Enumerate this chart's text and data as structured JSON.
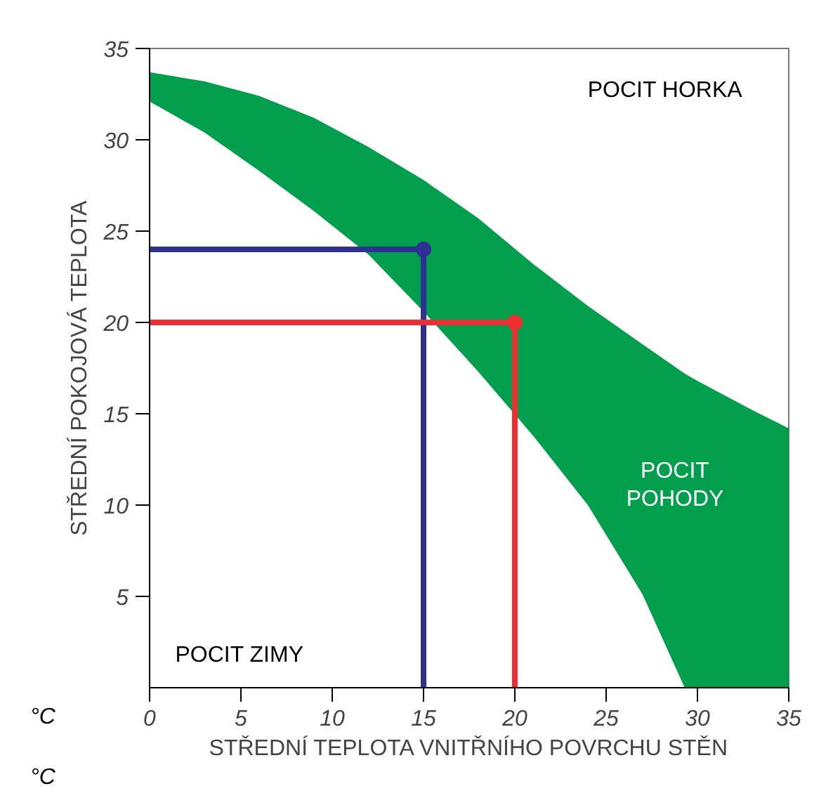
{
  "chart_data": {
    "type": "line",
    "xlabel": "STŘEDNÍ TEPLOTA VNITŘNÍHO POVRCHU STĚN",
    "ylabel": "STŘEDNÍ POKOJOVÁ TEPLOTA",
    "xlim": [
      0,
      35
    ],
    "ylim": [
      0,
      35
    ],
    "xticks": [
      0,
      5,
      10,
      15,
      20,
      25,
      30,
      35
    ],
    "yticks": [
      5,
      10,
      15,
      20,
      25,
      30,
      35
    ],
    "grid": false,
    "series": [
      {
        "type": "area",
        "color": "#009e4d",
        "x": [
          0,
          3,
          6,
          9,
          12,
          15,
          18,
          21,
          24,
          27,
          29.3,
          30,
          33,
          35
        ],
        "values": [
          33.7,
          33.2,
          32.4,
          31.2,
          29.6,
          27.8,
          25.7,
          23.2,
          20.9,
          18.8,
          17.2,
          16.8,
          15.2,
          14.2
        ]
      },
      {
        "type": "area",
        "color": "#ffffff",
        "x": [
          0,
          3,
          6,
          9,
          12,
          15,
          18,
          21,
          24,
          27,
          29.3,
          30,
          33,
          35
        ],
        "values": [
          32.1,
          30.4,
          28.3,
          26.1,
          23.7,
          20.6,
          17.3,
          13.8,
          10.0,
          5.1,
          0,
          0,
          0,
          0
        ]
      },
      {
        "color": "#2e3192",
        "x": [
          0,
          15,
          15
        ],
        "values": [
          24,
          24,
          0
        ],
        "marker": "none"
      },
      {
        "color": "#ee2e30",
        "x": [
          0,
          20,
          20
        ],
        "values": [
          20,
          20,
          0
        ],
        "marker": "none"
      },
      {
        "type": "scatter",
        "color": "#2e3192",
        "x": [
          15
        ],
        "values": [
          24
        ],
        "marker": "circle"
      },
      {
        "type": "scatter",
        "color": "#ee2e30",
        "x": [
          20
        ],
        "values": [
          20
        ],
        "marker": "circle"
      }
    ],
    "annotations": [
      "POCIT HORKA",
      "POCIT\nPOHODY",
      "POCIT ZIMY",
      "°C",
      "°C"
    ]
  }
}
